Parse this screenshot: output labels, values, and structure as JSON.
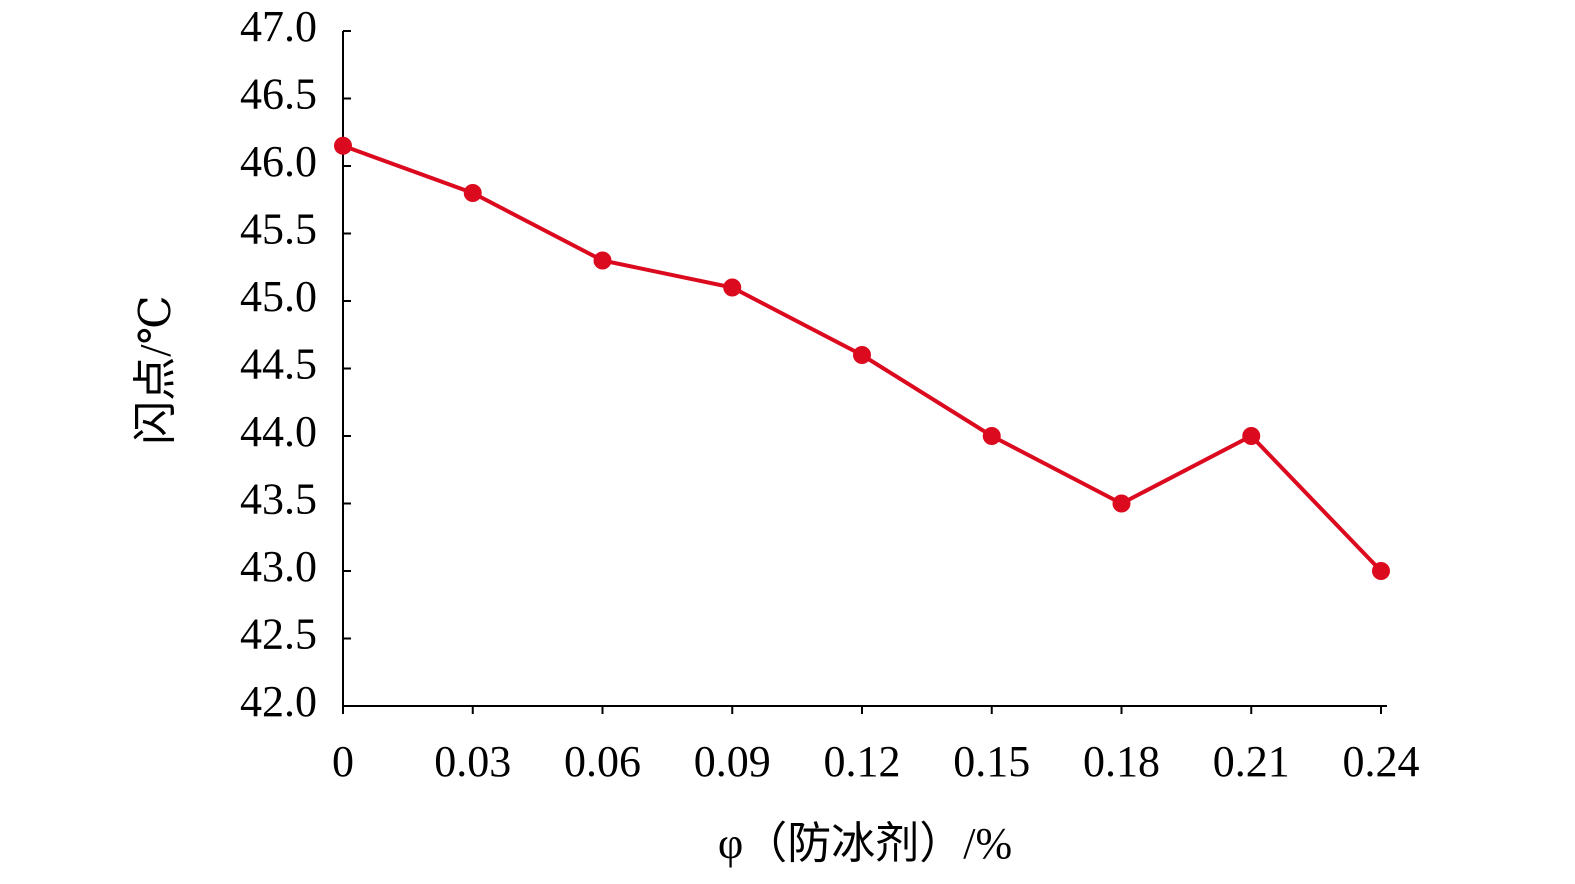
{
  "chart_data": {
    "type": "line",
    "x_label": "φ（防冰剂）/%",
    "y_label": "闪点/℃",
    "x": [
      0,
      0.03,
      0.06,
      0.09,
      0.12,
      0.15,
      0.18,
      0.21,
      0.24
    ],
    "series": [
      {
        "color": "#dc0a1e",
        "values": [
          46.15,
          45.8,
          45.3,
          45.1,
          44.6,
          44.0,
          43.5,
          44.0,
          43.0
        ]
      }
    ],
    "xlim": [
      0,
      0.24
    ],
    "xticks": [
      0,
      0.03,
      0.06,
      0.09,
      0.12,
      0.15,
      0.18,
      0.21,
      0.24
    ],
    "ylim": [
      42,
      47
    ],
    "yticks": [
      {
        "value": 42,
        "label": "42.0"
      },
      {
        "value": 42.5,
        "label": "42.5"
      },
      {
        "value": 43,
        "label": "43.0"
      },
      {
        "value": 43.5,
        "label": "43.5"
      },
      {
        "value": 44,
        "label": "44.0"
      },
      {
        "value": 44.5,
        "label": "44.5"
      },
      {
        "value": 45,
        "label": "45.0"
      },
      {
        "value": 45.5,
        "label": "45.5"
      },
      {
        "value": 46,
        "label": "46.0"
      },
      {
        "value": 46.5,
        "label": "46.5"
      },
      {
        "value": 47,
        "label": "47.0"
      }
    ],
    "grid": false
  }
}
